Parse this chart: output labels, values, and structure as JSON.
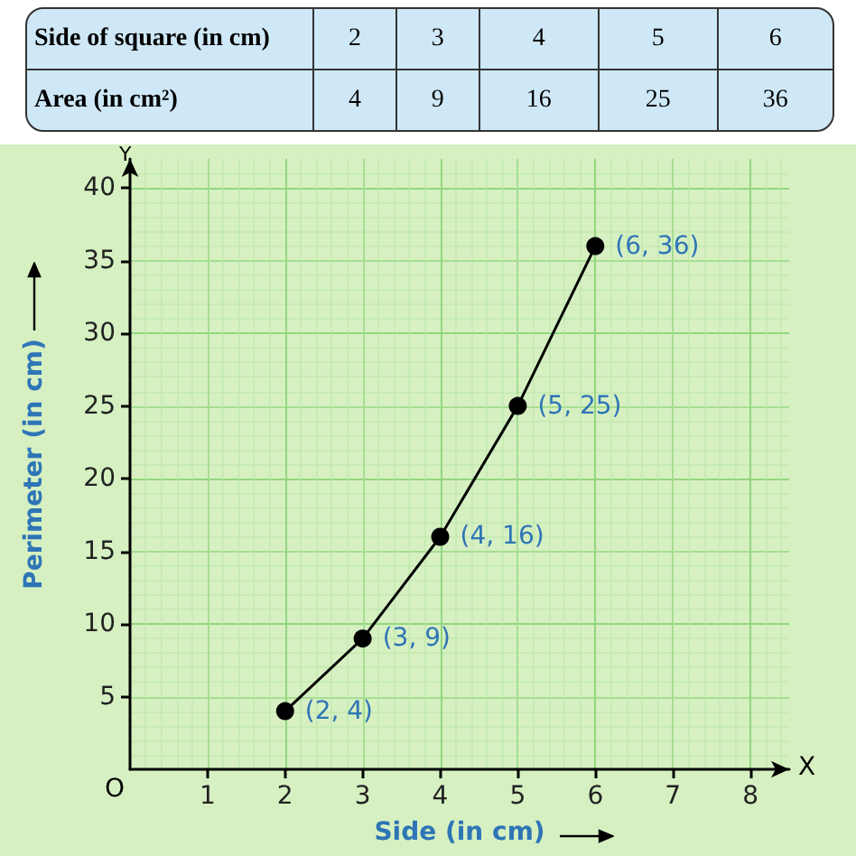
{
  "chart_data": {
    "type": "line",
    "xlabel": "Side (in cm)",
    "ylabel": "Perimeter (in cm)",
    "annotations": [
      "Side of square (in cm)",
      "2",
      "3",
      "4",
      "5",
      "6",
      "Area (in cm²)",
      "4",
      "9",
      "16",
      "25",
      "36",
      "Y",
      "X",
      "O"
    ],
    "x": [
      2,
      3,
      4,
      5,
      6
    ],
    "series": [
      {
        "color": "#000000",
        "values": [
          4,
          9,
          16,
          25,
          36
        ],
        "value_labels": [
          "(2, 4)",
          "(3, 9)",
          "(4, 16)",
          "(5, 25)",
          "(6, 36)"
        ]
      }
    ],
    "xlim": [
      0,
      8.5
    ],
    "xticks": [
      1,
      2,
      3,
      4,
      5,
      6,
      7,
      8
    ],
    "ylim": [
      0,
      42
    ],
    "yticks": [
      5,
      10,
      15,
      20,
      25,
      30,
      35,
      40
    ],
    "grid": true,
    "marker": "circle",
    "line_style": "solid"
  }
}
